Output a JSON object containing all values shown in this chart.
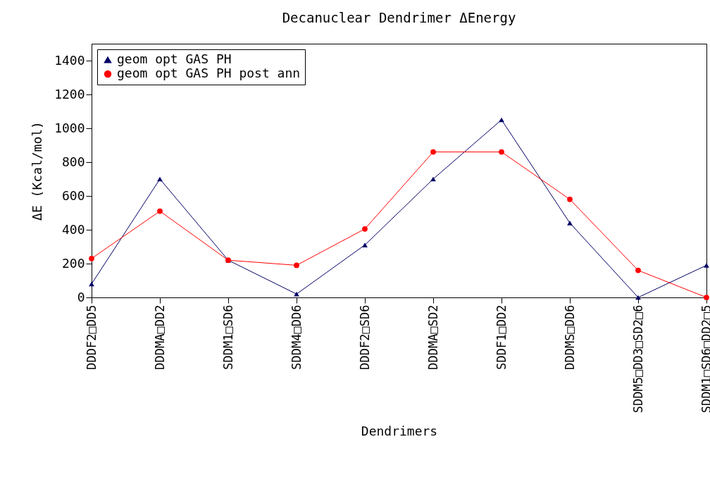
{
  "chart_data": {
    "type": "line",
    "title": "Decanuclear Dendrimer ΔEnergy",
    "xlabel": "Dendrimers",
    "ylabel": "ΔE (Kcal/mol)",
    "categories": [
      "DDDF2□DD5",
      "DDDMA□DD2",
      "SDDM1□SD6",
      "SDDM4□DD6",
      "DDDF2□SD6",
      "DDDMA□SD2",
      "SDDF1□DD2",
      "DDDMS□DD6",
      "SDDM5□DD3□SD2□6",
      "SDDM1□SD6□DD2□5"
    ],
    "series": [
      {
        "name": "geom opt GAS PH",
        "color": "#000066",
        "marker": "triangle",
        "values": [
          80,
          700,
          220,
          20,
          310,
          700,
          1050,
          440,
          0,
          190
        ]
      },
      {
        "name": "geom opt GAS PH post ann",
        "color": "#ff0000",
        "marker": "circle",
        "values": [
          230,
          510,
          220,
          190,
          405,
          860,
          860,
          580,
          160,
          0
        ]
      }
    ],
    "ylim": [
      0,
      1500
    ],
    "yticks": [
      0,
      200,
      400,
      600,
      800,
      1000,
      1200,
      1400
    ],
    "grid": false,
    "legend": "top left"
  }
}
